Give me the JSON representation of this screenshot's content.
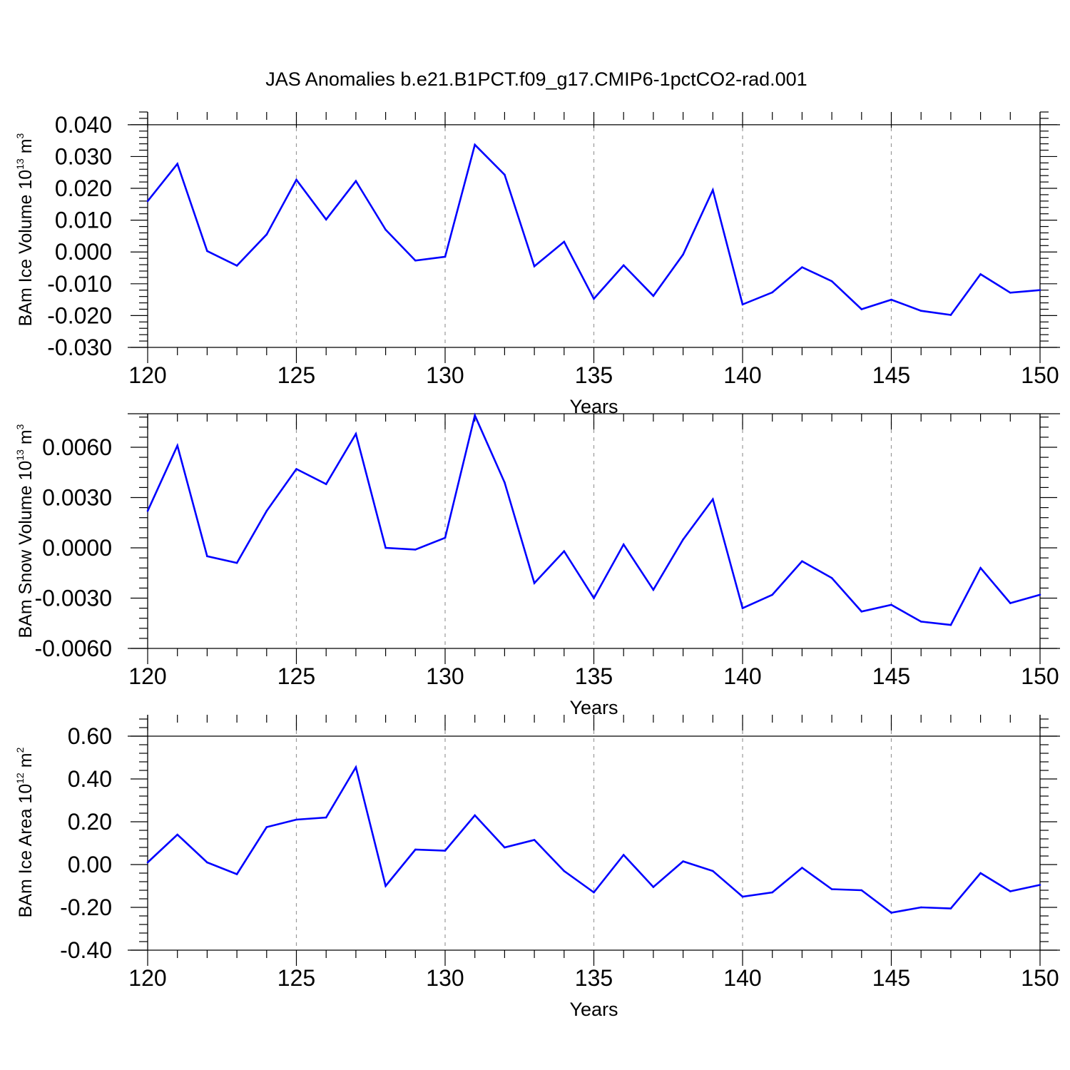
{
  "title": "JAS Anomalies b.e21.B1PCT.f09_g17.CMIP6-1pctCO2-rad.001",
  "colors": {
    "line": "#0000ff",
    "axis": "#000000",
    "grid": "#9a9a9a"
  },
  "chart_data": [
    {
      "type": "line",
      "xlabel": "Years",
      "ylabel": {
        "text": "BAm Ice Volume 10",
        "exp": "13",
        "unit": "m",
        "unit_exp": "3"
      },
      "xlim": [
        120,
        150
      ],
      "ylim": [
        -0.03,
        0.044
      ],
      "grid": "vertical dashed at major x ticks",
      "x_ticks": [
        120,
        125,
        130,
        135,
        140,
        145,
        150
      ],
      "x_tick_labels": [
        "120",
        "125",
        "130",
        "135",
        "140",
        "145",
        "150"
      ],
      "y_ticks": [
        -0.03,
        -0.02,
        -0.01,
        0.0,
        0.01,
        0.02,
        0.03,
        0.04
      ],
      "y_tick_labels": [
        "-0.030",
        "-0.020",
        "-0.010",
        "0.000",
        "0.010",
        "0.020",
        "0.030",
        "0.040"
      ],
      "reference_line": 0.04,
      "x": [
        120,
        121,
        122,
        123,
        124,
        125,
        126,
        127,
        128,
        129,
        130,
        131,
        132,
        133,
        134,
        135,
        136,
        137,
        138,
        139,
        140,
        141,
        142,
        143,
        144,
        145,
        146,
        147,
        148,
        149,
        150
      ],
      "series": [
        {
          "values": [
            0.016,
            0.0277,
            0.0003,
            -0.0043,
            0.0055,
            0.0227,
            0.0102,
            0.0223,
            0.007,
            -0.0027,
            -0.0015,
            0.0337,
            0.0243,
            -0.0045,
            0.0032,
            -0.0147,
            -0.0042,
            -0.0138,
            -0.0008,
            0.0195,
            -0.0165,
            -0.0127,
            -0.0048,
            -0.0092,
            -0.018,
            -0.015,
            -0.0185,
            -0.0198,
            -0.007,
            -0.0128,
            -0.012
          ]
        }
      ]
    },
    {
      "type": "line",
      "xlabel": "Years",
      "ylabel": {
        "text": "BAm Snow Volume 10",
        "exp": "13",
        "unit": "m",
        "unit_exp": "3"
      },
      "xlim": [
        120,
        150
      ],
      "ylim": [
        -0.006,
        0.008
      ],
      "grid": "vertical dashed at major x ticks",
      "x_ticks": [
        120,
        125,
        130,
        135,
        140,
        145,
        150
      ],
      "x_tick_labels": [
        "120",
        "125",
        "130",
        "135",
        "140",
        "145",
        "150"
      ],
      "y_ticks": [
        -0.006,
        -0.003,
        0.0,
        0.003,
        0.006
      ],
      "y_tick_labels": [
        "-0.0060",
        "-0.0030",
        "0.0000",
        "0.0030",
        "0.0060"
      ],
      "reference_line": 0.008,
      "x": [
        120,
        121,
        122,
        123,
        124,
        125,
        126,
        127,
        128,
        129,
        130,
        131,
        132,
        133,
        134,
        135,
        136,
        137,
        138,
        139,
        140,
        141,
        142,
        143,
        144,
        145,
        146,
        147,
        148,
        149,
        150
      ],
      "series": [
        {
          "values": [
            0.0022,
            0.0061,
            -0.0005,
            -0.0009,
            0.0022,
            0.0047,
            0.0038,
            0.0068,
            0.0,
            -0.0001,
            0.0006,
            0.0079,
            0.0039,
            -0.0021,
            -0.0002,
            -0.003,
            0.0002,
            -0.0025,
            0.0005,
            0.0029,
            -0.0036,
            -0.0028,
            -0.0008,
            -0.0018,
            -0.0038,
            -0.0034,
            -0.0044,
            -0.0046,
            -0.0012,
            -0.0033,
            -0.0028
          ]
        }
      ]
    },
    {
      "type": "line",
      "xlabel": "Years",
      "ylabel": {
        "text": "BAm Ice Area 10",
        "exp": "12",
        "unit": "m",
        "unit_exp": "2"
      },
      "xlim": [
        120,
        150
      ],
      "ylim": [
        -0.4,
        0.7
      ],
      "grid": "vertical dashed at major x ticks",
      "x_ticks": [
        120,
        125,
        130,
        135,
        140,
        145,
        150
      ],
      "x_tick_labels": [
        "120",
        "125",
        "130",
        "135",
        "140",
        "145",
        "150"
      ],
      "y_ticks": [
        -0.4,
        -0.2,
        0.0,
        0.2,
        0.4,
        0.6
      ],
      "y_tick_labels": [
        "-0.40",
        "-0.20",
        "0.00",
        "0.20",
        "0.40",
        "0.60"
      ],
      "reference_line": 0.6,
      "x": [
        120,
        121,
        122,
        123,
        124,
        125,
        126,
        127,
        128,
        129,
        130,
        131,
        132,
        133,
        134,
        135,
        136,
        137,
        138,
        139,
        140,
        141,
        142,
        143,
        144,
        145,
        146,
        147,
        148,
        149,
        150
      ],
      "series": [
        {
          "values": [
            0.01,
            0.14,
            0.01,
            -0.045,
            0.175,
            0.21,
            0.22,
            0.455,
            -0.1,
            0.07,
            0.065,
            0.23,
            0.08,
            0.115,
            -0.03,
            -0.13,
            0.045,
            -0.105,
            0.015,
            -0.03,
            -0.15,
            -0.13,
            -0.015,
            -0.115,
            -0.12,
            -0.225,
            -0.2,
            -0.205,
            -0.04,
            -0.125,
            -0.095
          ]
        }
      ]
    }
  ]
}
